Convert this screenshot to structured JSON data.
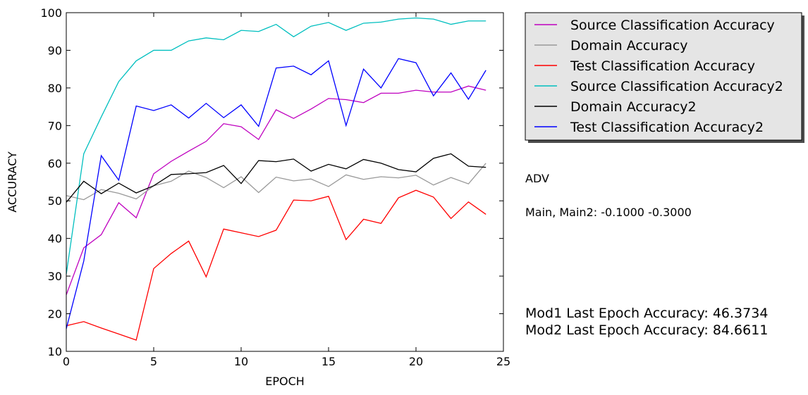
{
  "chart_data": {
    "type": "line",
    "xlabel": "EPOCH",
    "ylabel": "ACCURACY",
    "xlim": [
      0,
      25
    ],
    "ylim": [
      10,
      100
    ],
    "xticks": [
      0,
      5,
      10,
      15,
      20,
      25
    ],
    "yticks": [
      10,
      20,
      30,
      40,
      50,
      60,
      70,
      80,
      90,
      100
    ],
    "grid": false,
    "legend_position": "outside-top-right",
    "x": [
      0,
      1,
      2,
      3,
      4,
      5,
      6,
      7,
      8,
      9,
      10,
      11,
      12,
      13,
      14,
      15,
      16,
      17,
      18,
      19,
      20,
      21,
      22,
      23,
      24
    ],
    "series": [
      {
        "name": "Source Classification Accuracy",
        "color": "#bf00bf",
        "values": [
          25.0,
          37.5,
          41.0,
          49.5,
          45.5,
          57.2,
          60.5,
          63.2,
          65.8,
          70.5,
          69.7,
          66.3,
          74.2,
          71.9,
          74.4,
          77.2,
          76.9,
          76.1,
          78.6,
          78.6,
          79.4,
          78.9,
          78.9,
          80.5,
          79.4
        ]
      },
      {
        "name": "Domain Accuracy",
        "color": "#999999",
        "values": [
          51.4,
          50.3,
          53.0,
          52.0,
          50.5,
          54.0,
          55.2,
          57.9,
          56.2,
          53.5,
          56.4,
          52.2,
          56.3,
          55.3,
          55.8,
          53.8,
          56.9,
          55.7,
          56.4,
          56.1,
          56.8,
          54.2,
          56.2,
          54.5,
          60.0
        ]
      },
      {
        "name": "Test Classification Accuracy",
        "color": "#ff0000",
        "values": [
          16.8,
          17.9,
          16.2,
          14.6,
          13.0,
          32.0,
          36.0,
          39.3,
          29.8,
          42.5,
          41.5,
          40.5,
          42.2,
          50.2,
          50.0,
          51.2,
          39.7,
          45.1,
          44.0,
          50.8,
          52.8,
          51.0,
          45.3,
          49.7,
          46.4
        ]
      },
      {
        "name": "Source Classification Accuracy2",
        "color": "#00bfbf",
        "values": [
          30.5,
          62.5,
          72.3,
          81.7,
          87.2,
          90.0,
          90.0,
          92.5,
          93.3,
          92.8,
          95.3,
          95.0,
          96.9,
          93.6,
          96.4,
          97.4,
          95.3,
          97.2,
          97.5,
          98.3,
          98.6,
          98.3,
          96.9,
          97.8,
          97.8
        ]
      },
      {
        "name": "Domain Accuracy2",
        "color": "#000000",
        "values": [
          49.6,
          55.2,
          51.9,
          54.7,
          52.1,
          54.0,
          57.0,
          57.2,
          57.5,
          59.4,
          54.6,
          60.7,
          60.4,
          61.1,
          57.9,
          59.7,
          58.5,
          61.0,
          60.0,
          58.3,
          57.7,
          61.3,
          62.5,
          59.2,
          58.9
        ]
      },
      {
        "name": "Test Classification Accuracy2",
        "color": "#0000ff",
        "values": [
          16.0,
          34.0,
          62.0,
          55.5,
          75.2,
          74.0,
          75.5,
          72.0,
          75.9,
          72.1,
          75.5,
          69.8,
          85.3,
          85.8,
          83.5,
          87.2,
          70.0,
          85.0,
          80.0,
          87.8,
          86.7,
          77.9,
          84.0,
          77.0,
          84.7
        ]
      }
    ]
  },
  "annotations": {
    "method": "ADV",
    "params": "Main, Main2: -0.1000 -0.3000",
    "mod1_accuracy": "Mod1 Last Epoch Accuracy: 46.3734",
    "mod2_accuracy": "Mod2 Last Epoch Accuracy: 84.6611"
  }
}
